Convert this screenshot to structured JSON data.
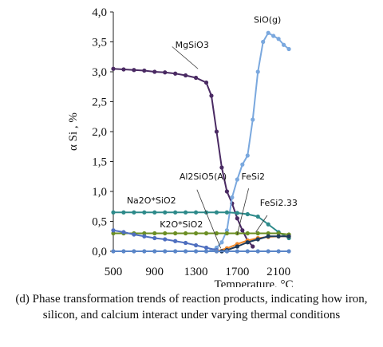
{
  "caption": "(d) Phase transformation trends of reaction products, indicating how iron, silicon, and calcium interact under varying thermal conditions",
  "chart_data": {
    "type": "line",
    "title": "",
    "ylabel": "α Si , %",
    "xlabel": "Temperature, °C",
    "xlim": [
      500,
      2300
    ],
    "ylim": [
      0,
      4
    ],
    "x_ticks": [
      "500",
      "900",
      "1300",
      "1700",
      "2100"
    ],
    "y_ticks": [
      "0,0",
      "0,5",
      "1,0",
      "1,5",
      "2,0",
      "2,5",
      "3,0",
      "3,5",
      "4,0"
    ],
    "grid": false,
    "legend": "none (inline labels)",
    "series": [
      {
        "name": "MgSiO3",
        "color": "#4a2a63",
        "x": [
          500,
          600,
          700,
          800,
          900,
          1000,
          1100,
          1200,
          1300,
          1400,
          1450,
          1500,
          1550,
          1600,
          1650,
          1700,
          1750,
          1800,
          1850
        ],
        "y": [
          3.05,
          3.04,
          3.03,
          3.02,
          3.0,
          2.99,
          2.97,
          2.94,
          2.9,
          2.82,
          2.6,
          2.0,
          1.4,
          1.0,
          0.8,
          0.55,
          0.35,
          0.18,
          0.08
        ]
      },
      {
        "name": "SiO(g)",
        "color": "#7aa8de",
        "x": [
          1450,
          1500,
          1550,
          1600,
          1650,
          1700,
          1750,
          1800,
          1850,
          1900,
          1950,
          2000,
          2050,
          2100,
          2150,
          2200
        ],
        "y": [
          0.02,
          0.06,
          0.15,
          0.35,
          0.9,
          1.2,
          1.45,
          1.6,
          2.2,
          3.0,
          3.5,
          3.65,
          3.6,
          3.55,
          3.45,
          3.38
        ]
      },
      {
        "name": "Na2O*SiO2",
        "color": "#2d8a8a",
        "x": [
          500,
          600,
          700,
          800,
          900,
          1000,
          1100,
          1200,
          1300,
          1400,
          1500,
          1600,
          1700,
          1800,
          1900,
          2000,
          2100,
          2200
        ],
        "y": [
          0.65,
          0.65,
          0.65,
          0.65,
          0.65,
          0.65,
          0.65,
          0.65,
          0.65,
          0.65,
          0.65,
          0.65,
          0.64,
          0.62,
          0.58,
          0.45,
          0.32,
          0.22
        ]
      },
      {
        "name": "K2O*SiO2",
        "color": "#6b8e23",
        "x": [
          500,
          600,
          700,
          800,
          900,
          1000,
          1100,
          1200,
          1300,
          1400,
          1500,
          1600,
          1700,
          1800,
          1900,
          2000,
          2100,
          2200
        ],
        "y": [
          0.3,
          0.3,
          0.3,
          0.3,
          0.3,
          0.3,
          0.3,
          0.3,
          0.3,
          0.3,
          0.3,
          0.3,
          0.3,
          0.3,
          0.3,
          0.3,
          0.3,
          0.28
        ]
      },
      {
        "name": "Al2SiO5(A)",
        "color": "#4f6fbf",
        "x": [
          500,
          600,
          700,
          800,
          900,
          1000,
          1100,
          1200,
          1300,
          1400,
          1500,
          1550,
          1600
        ],
        "y": [
          0.35,
          0.32,
          0.28,
          0.25,
          0.22,
          0.2,
          0.17,
          0.14,
          0.1,
          0.06,
          0.02,
          0.0,
          0.0
        ]
      },
      {
        "name": "FeSi2",
        "color": "#f0882a",
        "x": [
          1500,
          1600,
          1700,
          1800,
          1900,
          2000,
          2100,
          2200
        ],
        "y": [
          0.0,
          0.05,
          0.12,
          0.18,
          0.22,
          0.24,
          0.25,
          0.25
        ]
      },
      {
        "name": "FeSi2.33",
        "color": "#1f3b5c",
        "x": [
          1550,
          1600,
          1700,
          1800,
          1900,
          2000,
          2100,
          2200
        ],
        "y": [
          0.0,
          0.02,
          0.08,
          0.15,
          0.2,
          0.25,
          0.25,
          0.25
        ]
      },
      {
        "name": "",
        "color": "#5b86c8",
        "x": [
          500,
          600,
          700,
          800,
          900,
          1000,
          1100,
          1200,
          1300,
          1400,
          1500,
          1600,
          1700,
          1800,
          1900,
          2000,
          2100,
          2200
        ],
        "y": [
          0.0,
          0.0,
          0.0,
          0.0,
          0.0,
          0.0,
          0.0,
          0.0,
          0.0,
          0.0,
          0.0,
          0.0,
          0.0,
          0.0,
          0.0,
          0.0,
          0.0,
          0.0
        ]
      }
    ],
    "annotations": [
      {
        "text": "MgSiO3",
        "x": 1100,
        "y": 3.4
      },
      {
        "text": "SiO(g)",
        "x": 1860,
        "y": 3.82
      },
      {
        "text": "Al2SiO5(A)",
        "x": 1140,
        "y": 1.2
      },
      {
        "text": "FeSi2",
        "x": 1740,
        "y": 1.2
      },
      {
        "text": "Na2O*SiO2",
        "x": 630,
        "y": 0.8
      },
      {
        "text": "FeSi2.33",
        "x": 1920,
        "y": 0.76
      },
      {
        "text": "K2O*SiO2",
        "x": 950,
        "y": 0.4
      }
    ]
  }
}
